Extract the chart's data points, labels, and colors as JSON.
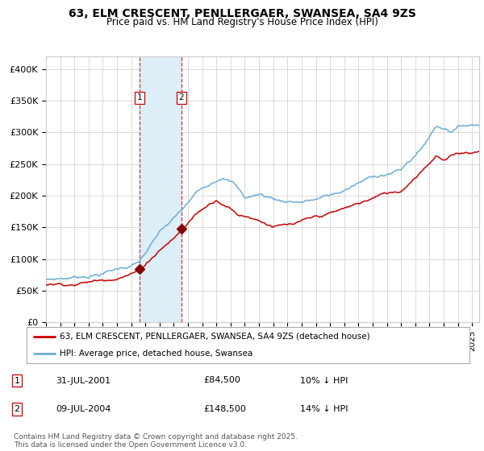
{
  "title": "63, ELM CRESCENT, PENLLERGAER, SWANSEA, SA4 9ZS",
  "subtitle": "Price paid vs. HM Land Registry's House Price Index (HPI)",
  "background_color": "#ffffff",
  "plot_bg_color": "#ffffff",
  "grid_color": "#cccccc",
  "xmin": 1995.0,
  "xmax": 2025.5,
  "ymin": 0,
  "ymax": 420000,
  "yticks": [
    0,
    50000,
    100000,
    150000,
    200000,
    250000,
    300000,
    350000,
    400000
  ],
  "ytick_labels": [
    "£0",
    "£50K",
    "£100K",
    "£150K",
    "£200K",
    "£250K",
    "£300K",
    "£350K",
    "£400K"
  ],
  "transaction1_date": 2001.58,
  "transaction1_price": 84500,
  "transaction1_label": "1",
  "transaction1_date_str": "31-JUL-2001",
  "transaction1_pct": "10% ↓ HPI",
  "transaction2_date": 2004.53,
  "transaction2_price": 148500,
  "transaction2_label": "2",
  "transaction2_date_str": "09-JUL-2004",
  "transaction2_pct": "14% ↓ HPI",
  "hpi_color": "#6baed6",
  "price_color": "#cc0000",
  "vspan_color": "#dceef8",
  "vline_color": "#dd3333",
  "marker_color": "#880000",
  "legend_label_red": "63, ELM CRESCENT, PENLLERGAER, SWANSEA, SA4 9ZS (detached house)",
  "legend_label_blue": "HPI: Average price, detached house, Swansea",
  "footer": "Contains HM Land Registry data © Crown copyright and database right 2025.\nThis data is licensed under the Open Government Licence v3.0.",
  "xtick_years": [
    1995,
    1996,
    1997,
    1998,
    1999,
    2000,
    2001,
    2002,
    2003,
    2004,
    2005,
    2006,
    2007,
    2008,
    2009,
    2010,
    2011,
    2012,
    2013,
    2014,
    2015,
    2016,
    2017,
    2018,
    2019,
    2020,
    2021,
    2022,
    2023,
    2024,
    2025
  ]
}
